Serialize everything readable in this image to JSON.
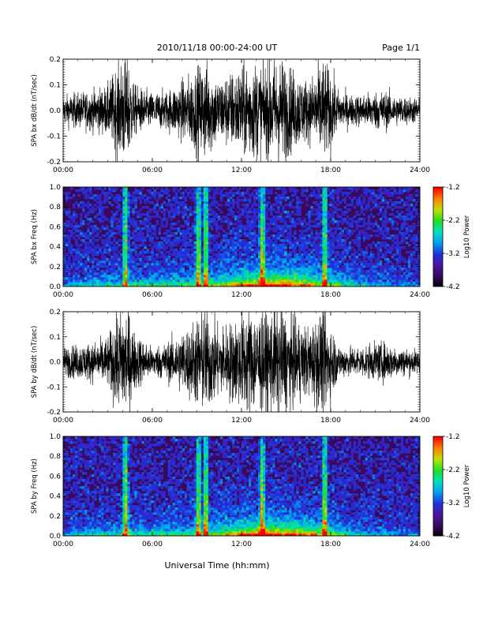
{
  "header": {
    "date_range": "2010/11/18  00:00-24:00 UT",
    "page": "Page 1/1"
  },
  "x_axis_title": "Universal Time (hh:mm)",
  "colors": {
    "trace": "#000000",
    "colormap": [
      "#000000",
      "#3a0a5a",
      "#4a16a0",
      "#2030e0",
      "#00a0f0",
      "#00e0c0",
      "#20e020",
      "#c0e000",
      "#ff8000",
      "#ff0000"
    ]
  },
  "chart_data": [
    {
      "type": "line",
      "ylabel": "SPA bx dB/dt (nT/sec)",
      "xlim": [
        "00:00",
        "24:00"
      ],
      "xticks": [
        "00:00",
        "06:00",
        "12:00",
        "18:00",
        "24:00"
      ],
      "ylim": [
        -0.2,
        0.2
      ],
      "yticks": [
        "-0.2",
        "-0.1",
        "0.0",
        "0.1",
        "0.2"
      ],
      "envelope_hours": [
        0,
        1,
        2,
        3,
        3.8,
        4.1,
        4.4,
        4.8,
        6,
        7,
        8.5,
        9.5,
        10.5,
        11.5,
        12.5,
        13.5,
        14.5,
        15.5,
        16.5,
        17.5,
        18,
        18.5,
        19.5,
        20.5,
        21.5,
        22.5,
        24
      ],
      "envelope_amplitude": [
        0.06,
        0.07,
        0.08,
        0.1,
        0.2,
        0.22,
        0.2,
        0.1,
        0.07,
        0.08,
        0.14,
        0.2,
        0.13,
        0.16,
        0.2,
        0.18,
        0.22,
        0.16,
        0.12,
        0.2,
        0.16,
        0.08,
        0.06,
        0.07,
        0.08,
        0.06,
        0.05
      ]
    },
    {
      "type": "heatmap",
      "ylabel": "SPA bx Freq (Hz)",
      "xlim": [
        "00:00",
        "24:00"
      ],
      "xticks": [
        "00:00",
        "06:00",
        "12:00",
        "18:00",
        "24:00"
      ],
      "ylim": [
        0.0,
        1.0
      ],
      "yticks": [
        "0.0",
        "0.2",
        "0.4",
        "0.6",
        "0.8",
        "1.0"
      ],
      "colorbar": {
        "label": "Log10 Power",
        "range": [
          -4.2,
          -1.2
        ],
        "ticks": [
          "-1.2",
          "-2.2",
          "-3.2",
          "-4.2"
        ]
      },
      "bright_columns_hours": [
        4.2,
        9.1,
        9.6,
        13.4,
        17.6
      ],
      "low_freq_band_peak_hours": 14.5
    },
    {
      "type": "line",
      "ylabel": "SPA by dB/dt (nT/sec)",
      "xlim": [
        "00:00",
        "24:00"
      ],
      "xticks": [
        "00:00",
        "06:00",
        "12:00",
        "18:00",
        "24:00"
      ],
      "ylim": [
        -0.2,
        0.2
      ],
      "yticks": [
        "-0.2",
        "-0.1",
        "0.0",
        "0.1",
        "0.2"
      ],
      "envelope_hours": [
        0,
        1,
        2,
        3,
        3.8,
        4.1,
        4.4,
        4.8,
        6,
        7,
        8.5,
        9.5,
        10.5,
        11.5,
        12.5,
        13.5,
        14.5,
        15.5,
        16.5,
        17.5,
        18,
        18.5,
        19.5,
        20.5,
        21.5,
        22.5,
        24
      ],
      "envelope_amplitude": [
        0.06,
        0.07,
        0.08,
        0.1,
        0.22,
        0.24,
        0.22,
        0.12,
        0.06,
        0.08,
        0.15,
        0.22,
        0.14,
        0.17,
        0.22,
        0.2,
        0.22,
        0.18,
        0.14,
        0.22,
        0.16,
        0.07,
        0.06,
        0.07,
        0.08,
        0.06,
        0.05
      ]
    },
    {
      "type": "heatmap",
      "ylabel": "SPA by Freq (Hz)",
      "xlim": [
        "00:00",
        "24:00"
      ],
      "xticks": [
        "00:00",
        "06:00",
        "12:00",
        "18:00",
        "24:00"
      ],
      "ylim": [
        0.0,
        1.0
      ],
      "yticks": [
        "0.0",
        "0.2",
        "0.4",
        "0.6",
        "0.8",
        "1.0"
      ],
      "colorbar": {
        "label": "Log10 Power",
        "range": [
          -4.2,
          -1.2
        ],
        "ticks": [
          "-1.2",
          "-2.2",
          "-3.2",
          "-4.2"
        ]
      },
      "bright_columns_hours": [
        4.2,
        9.1,
        9.6,
        13.4,
        17.6
      ],
      "low_freq_band_peak_hours": 14.5
    }
  ]
}
